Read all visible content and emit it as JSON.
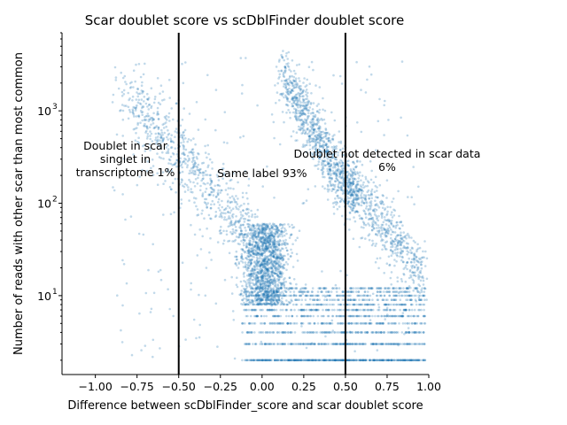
{
  "chart_data": {
    "type": "scatter",
    "title": "Scar doublet score vs scDblFinder doublet score",
    "xlabel": "Difference between scDblFinder_score and scar doublet score",
    "ylabel": "Number of reads with other scar than most common",
    "xlim": [
      -1.2,
      1.0
    ],
    "ylim": [
      1.4,
      7000
    ],
    "y_scale": "log",
    "x_ticks": [
      -1.0,
      -0.75,
      -0.5,
      -0.25,
      0.0,
      0.25,
      0.5,
      0.75,
      1.0
    ],
    "x_tick_labels": [
      "−1.00",
      "−0.75",
      "−0.50",
      "−0.25",
      "0.00",
      "0.25",
      "0.50",
      "0.75",
      "1.00"
    ],
    "y_ticks": [
      10,
      100,
      1000
    ],
    "y_tick_labels": [
      "10",
      "10",
      "10"
    ],
    "y_tick_exponents": [
      "1",
      "2",
      "3"
    ],
    "vertical_lines": [
      -0.5,
      0.5
    ],
    "point_color": "#1f77b4",
    "annotations": [
      {
        "lines": [
          "Doublet in scar",
          "singlet in",
          "transcriptome  1%"
        ],
        "x": -0.82,
        "y": 300
      },
      {
        "lines": [
          "Same label  93%"
        ],
        "x": 0.0,
        "y": 210
      },
      {
        "lines": [
          "Doublet not detected in scar data",
          "6%"
        ],
        "x": 0.75,
        "y": 290
      }
    ],
    "clusters": [
      {
        "name": "dense-core",
        "x_center": 0.02,
        "x_spread": 0.07,
        "y_min": 8,
        "y_max": 60,
        "n": 1400
      },
      {
        "name": "integer-rows",
        "x_min": -0.12,
        "x_max": 0.98,
        "y_values": [
          2,
          3,
          4,
          5,
          6,
          7,
          8,
          9,
          10,
          11,
          12
        ],
        "n": 1800
      },
      {
        "name": "upper-arm",
        "x_min": 0.12,
        "x_max": 0.55,
        "y_min": 100,
        "y_max": 2500,
        "n": 900
      },
      {
        "name": "right-tail",
        "x_min": 0.5,
        "x_max": 0.98,
        "y_min": 15,
        "y_max": 200,
        "n": 600
      },
      {
        "name": "left-diag",
        "x_min": -0.8,
        "x_max": -0.05,
        "y_min": 40,
        "y_max": 1500,
        "n": 700
      },
      {
        "name": "scatter-noise",
        "x_min": -0.9,
        "x_max": 0.95,
        "y_min": 2,
        "y_max": 4000,
        "n": 250
      }
    ]
  }
}
